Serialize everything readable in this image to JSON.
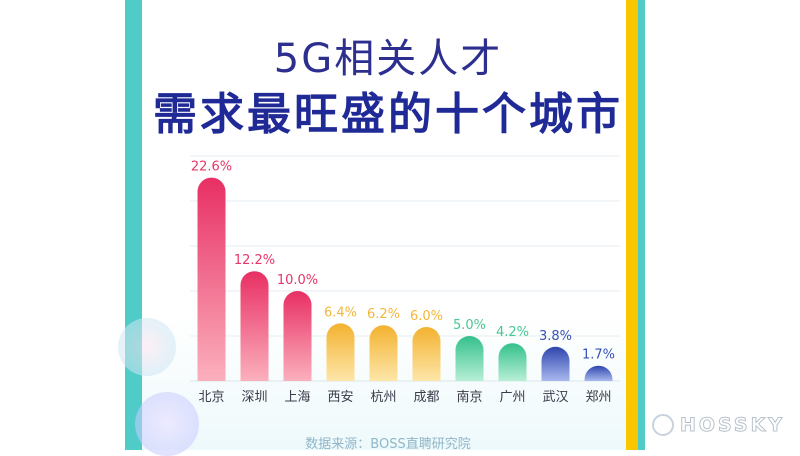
{
  "header": {
    "title_line1": "5G相关人才",
    "title_line2": "需求最旺盛的十个城市"
  },
  "footer": {
    "source": "数据来源：BOSS直聘研究院"
  },
  "watermark": {
    "logo_text": "HOSSKY"
  },
  "colors": {
    "panel_teal": "#4fcbc8",
    "accent_yellow": "#f9c600",
    "title_blue": "#1f2a96",
    "red": "#e63568",
    "orange": "#f4b73a",
    "green": "#49c793",
    "blue": "#3751b6"
  },
  "chart_data": {
    "type": "bar",
    "title": "",
    "xlabel": "",
    "ylabel": "",
    "ylim": [
      0,
      25
    ],
    "grid": true,
    "categories": [
      "北京",
      "深圳",
      "上海",
      "西安",
      "杭州",
      "成都",
      "南京",
      "广州",
      "武汉",
      "郑州"
    ],
    "values": [
      22.6,
      12.2,
      10.0,
      6.4,
      6.2,
      6.0,
      5.0,
      4.2,
      3.8,
      1.7
    ],
    "value_labels": [
      "22.6%",
      "12.2%",
      "10.0%",
      "6.4%",
      "6.2%",
      "6.0%",
      "5.0%",
      "4.2%",
      "3.8%",
      "1.7%"
    ],
    "bar_colors": [
      "red",
      "red",
      "red",
      "orange",
      "orange",
      "orange",
      "green",
      "green",
      "blue",
      "blue"
    ]
  }
}
